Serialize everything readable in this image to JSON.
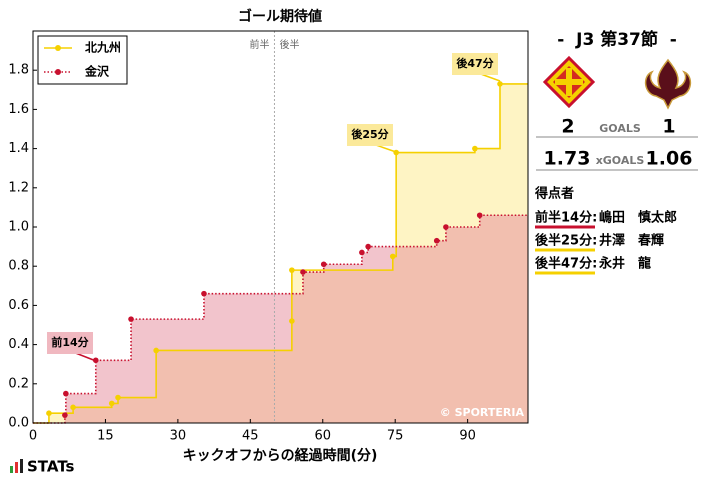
{
  "chart_data": {
    "type": "step",
    "title": "ゴール期待値",
    "x_label": "キックオフからの経過時間(分)",
    "xlim": [
      0,
      102.5
    ],
    "xticks": [
      0,
      15,
      30,
      45,
      60,
      75,
      90
    ],
    "ylim": [
      0,
      2.0
    ],
    "yticks": [
      {
        "value": 0,
        "label": "0.0"
      },
      0.2,
      0.4,
      0.6,
      0.8,
      {
        "value": 1,
        "label": "1.0"
      },
      1.2,
      1.4,
      1.6,
      1.8
    ],
    "halftime_line": 50,
    "halftime_labels": [
      "前半",
      "後半"
    ],
    "legend": "upper left",
    "series": [
      {
        "name": "北九州",
        "color": "#f5d000",
        "area_color": "#fde98a",
        "x": [
          3.3,
          8.3,
          16.3,
          17.6,
          25.5,
          53.6,
          53.6,
          74.5,
          75.2,
          91.5,
          96.7
        ],
        "values": [
          0.05,
          0.08,
          0.1,
          0.13,
          0.37,
          0.52,
          0.78,
          0.85,
          1.38,
          1.4,
          1.73
        ]
      },
      {
        "name": "金沢",
        "color": "#c8102e",
        "area_color": "#e58a9a",
        "x": [
          6.6,
          6.8,
          13.0,
          20.3,
          35.4,
          55.9,
          60.2,
          68.1,
          69.4,
          83.6,
          85.5,
          92.5
        ],
        "values": [
          0.04,
          0.15,
          0.32,
          0.53,
          0.66,
          0.77,
          0.81,
          0.87,
          0.9,
          0.93,
          1.0,
          1.06
        ]
      }
    ],
    "annotations": [
      "前14分",
      "後25分",
      "後47分"
    ],
    "credit": "© SPORTERIA"
  },
  "match": {
    "round": "-  J3 第37節  -",
    "home_goals": 2,
    "goals_label": "GOALS",
    "away_goals": 1,
    "home_xg": 1.73,
    "xg_label": "xGOALS",
    "away_xg": 1.06,
    "scorers_title": "得点者",
    "scorers": [
      {
        "time": "前半14分:",
        "name": "嶋田　慎太郎",
        "color": "#c8102e"
      },
      {
        "time": "後半25分:",
        "name": "井澤　春輝",
        "color": "#f5d000"
      },
      {
        "time": "後半47分:",
        "name": "永井　龍",
        "color": "#f5d000"
      }
    ]
  },
  "logo": "STATs"
}
